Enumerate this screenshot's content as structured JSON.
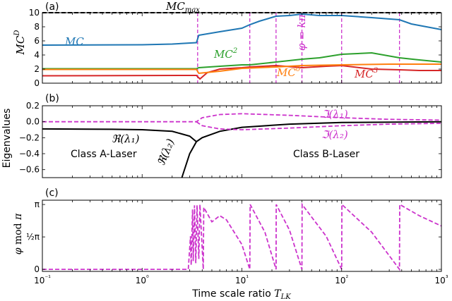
{
  "figure": {
    "x_axis_label": "Time scale ratio T_LK",
    "x_ticks": [
      {
        "value": 0.1,
        "label": "10⁻¹"
      },
      {
        "value": 1,
        "label": "10⁰"
      },
      {
        "value": 10,
        "label": "10¹"
      },
      {
        "value": 100,
        "label": "10²"
      },
      {
        "value": 1000,
        "label": "10³"
      }
    ]
  },
  "chart_data": [
    {
      "panel": "(a)",
      "type": "line",
      "x_scale": "log",
      "xlim": [
        0.1,
        1000
      ],
      "ylim": [
        0,
        10
      ],
      "ylabel": "MC^D",
      "y_ticks": [
        0,
        2,
        4,
        6,
        8,
        10
      ],
      "reference_line": {
        "label": "MC_max",
        "y": 10,
        "style": "dashed",
        "color": "#000000"
      },
      "vlines": [
        3.6,
        12,
        22,
        40,
        100,
        380
      ],
      "vline_color": "#cc33cc",
      "vline_label": "φ = kπ",
      "series": [
        {
          "name": "MC",
          "color": "#1f77b4",
          "points": [
            [
              0.1,
              5.4
            ],
            [
              1,
              5.45
            ],
            [
              2,
              5.55
            ],
            [
              3.5,
              5.75
            ],
            [
              3.7,
              6.8
            ],
            [
              6,
              7.3
            ],
            [
              10,
              7.8
            ],
            [
              12,
              8.3
            ],
            [
              15,
              8.8
            ],
            [
              22,
              9.5
            ],
            [
              30,
              9.6
            ],
            [
              40,
              9.8
            ],
            [
              60,
              9.6
            ],
            [
              100,
              9.6
            ],
            [
              200,
              9.3
            ],
            [
              380,
              9.0
            ],
            [
              500,
              8.4
            ],
            [
              1000,
              7.6
            ]
          ]
        },
        {
          "name": "MC²",
          "color": "#2ca02c",
          "points": [
            [
              0.1,
              2.05
            ],
            [
              3.5,
              2.05
            ],
            [
              3.7,
              2.2
            ],
            [
              6,
              2.4
            ],
            [
              10,
              2.6
            ],
            [
              12,
              2.6
            ],
            [
              22,
              3.0
            ],
            [
              40,
              3.4
            ],
            [
              60,
              3.6
            ],
            [
              100,
              4.1
            ],
            [
              200,
              4.3
            ],
            [
              380,
              3.6
            ],
            [
              600,
              3.3
            ],
            [
              1000,
              3.0
            ]
          ]
        },
        {
          "name": "MC³",
          "color": "#d62728",
          "points": [
            [
              0.1,
              1.05
            ],
            [
              3.5,
              1.1
            ],
            [
              3.8,
              0.6
            ],
            [
              4.5,
              1.5
            ],
            [
              6,
              2.0
            ],
            [
              10,
              2.2
            ],
            [
              12,
              2.3
            ],
            [
              22,
              2.5
            ],
            [
              40,
              2.2
            ],
            [
              70,
              2.4
            ],
            [
              100,
              2.5
            ],
            [
              200,
              2.0
            ],
            [
              380,
              1.9
            ],
            [
              600,
              1.8
            ],
            [
              1000,
              1.8
            ]
          ]
        },
        {
          "name": "MC⁰",
          "color": "#ff7f0e",
          "points": [
            [
              0.1,
              1.95
            ],
            [
              3.5,
              1.95
            ],
            [
              3.7,
              1.4
            ],
            [
              6,
              1.7
            ],
            [
              10,
              2.1
            ],
            [
              22,
              2.3
            ],
            [
              40,
              2.5
            ],
            [
              100,
              2.6
            ],
            [
              300,
              2.7
            ],
            [
              1000,
              2.7
            ]
          ]
        }
      ]
    },
    {
      "panel": "(b)",
      "type": "line",
      "x_scale": "log",
      "xlim": [
        0.1,
        1000
      ],
      "ylim": [
        -0.7,
        0.2
      ],
      "ylabel": "Eigenvalues",
      "y_ticks": [
        0.2,
        0.0,
        -0.2,
        -0.4,
        -0.6
      ],
      "annotations": [
        "Class A-Laser",
        "Class B-Laser"
      ],
      "series": [
        {
          "name": "ℜ(λ₁)",
          "color": "#000000",
          "style": "solid",
          "points": [
            [
              0.1,
              -0.09
            ],
            [
              0.5,
              -0.095
            ],
            [
              1,
              -0.1
            ],
            [
              2,
              -0.12
            ],
            [
              3,
              -0.18
            ],
            [
              3.5,
              -0.25
            ],
            [
              4,
              -0.2
            ],
            [
              6,
              -0.12
            ],
            [
              10,
              -0.07
            ],
            [
              30,
              -0.03
            ],
            [
              100,
              -0.01
            ],
            [
              1000,
              0.0
            ]
          ]
        },
        {
          "name": "ℜ(λ₂)",
          "color": "#000000",
          "style": "solid",
          "points": [
            [
              2.5,
              -0.7
            ],
            [
              3,
              -0.4
            ],
            [
              3.5,
              -0.25
            ]
          ]
        },
        {
          "name": "ℑ(λ₁)",
          "color": "#cc33cc",
          "style": "dashed",
          "points": [
            [
              0.1,
              0.0
            ],
            [
              3.5,
              0.0
            ],
            [
              4,
              0.05
            ],
            [
              6,
              0.09
            ],
            [
              10,
              0.1
            ],
            [
              30,
              0.08
            ],
            [
              100,
              0.05
            ],
            [
              300,
              0.03
            ],
            [
              1000,
              0.02
            ]
          ]
        },
        {
          "name": "ℑ(λ₂)",
          "color": "#cc33cc",
          "style": "dashed",
          "points": [
            [
              3.5,
              0.0
            ],
            [
              4,
              -0.05
            ],
            [
              6,
              -0.09
            ],
            [
              10,
              -0.1
            ],
            [
              30,
              -0.08
            ],
            [
              100,
              -0.05
            ],
            [
              300,
              -0.03
            ],
            [
              1000,
              -0.02
            ]
          ]
        }
      ]
    },
    {
      "panel": "(c)",
      "type": "line",
      "x_scale": "log",
      "xlim": [
        0.1,
        1000
      ],
      "ylim": [
        -0.1,
        3.35
      ],
      "ylabel": "φ mod π",
      "y_ticks": [
        {
          "value": 0,
          "label": "0"
        },
        {
          "value": 1.5708,
          "label": "½π"
        },
        {
          "value": 3.1416,
          "label": "π"
        }
      ],
      "series": [
        {
          "name": "φ mod π",
          "color": "#cc33cc",
          "style": "dashed",
          "points": [
            [
              0.1,
              0.0
            ],
            [
              2.9,
              0.0
            ],
            [
              3.05,
              1.6
            ],
            [
              3.1,
              0.2
            ],
            [
              3.2,
              2.9
            ],
            [
              3.25,
              0.4
            ],
            [
              3.35,
              3.1
            ],
            [
              3.45,
              0.3
            ],
            [
              3.55,
              3.1
            ],
            [
              3.7,
              0.5
            ],
            [
              3.8,
              3.14
            ],
            [
              4.0,
              1.0
            ],
            [
              4.1,
              0.0
            ],
            [
              4.15,
              3.0
            ],
            [
              5,
              2.3
            ],
            [
              6,
              2.6
            ],
            [
              7,
              2.4
            ],
            [
              10,
              1.2
            ],
            [
              12,
              0.0
            ],
            [
              12.1,
              3.14
            ],
            [
              17,
              1.8
            ],
            [
              22,
              0.0
            ],
            [
              22.1,
              3.14
            ],
            [
              30,
              1.9
            ],
            [
              40,
              0.0
            ],
            [
              40.2,
              3.14
            ],
            [
              70,
              1.6
            ],
            [
              100,
              0.0
            ],
            [
              100.5,
              3.14
            ],
            [
              200,
              1.8
            ],
            [
              380,
              0.0
            ],
            [
              382,
              3.14
            ],
            [
              600,
              2.6
            ],
            [
              1000,
              2.1
            ]
          ]
        }
      ]
    }
  ]
}
